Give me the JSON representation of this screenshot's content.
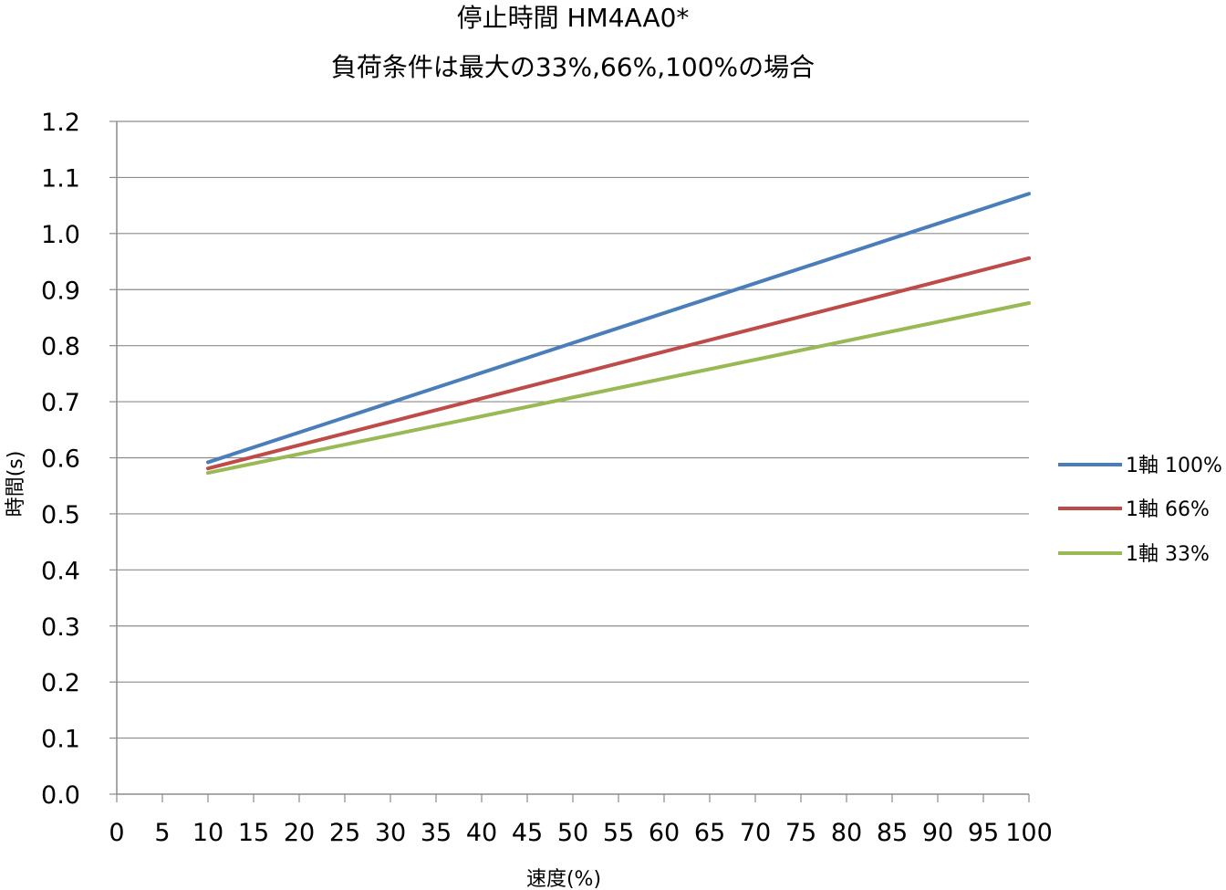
{
  "chart_data": {
    "type": "line",
    "title": "停止時間 HM4AA0*",
    "subtitle": "負荷条件は最大の33%,66%,100%の場合",
    "xlabel": "速度(%)",
    "ylabel": "時間(s)",
    "xlim": [
      0,
      100
    ],
    "ylim": [
      0,
      1.2
    ],
    "x_ticks": [
      "0",
      "5",
      "10",
      "15",
      "20",
      "25",
      "30",
      "35",
      "40",
      "45",
      "50",
      "55",
      "60",
      "65",
      "70",
      "75",
      "80",
      "85",
      "90",
      "95",
      "100"
    ],
    "y_ticks": [
      "0.0",
      "0.1",
      "0.2",
      "0.3",
      "0.4",
      "0.5",
      "0.6",
      "0.7",
      "0.8",
      "0.9",
      "1.0",
      "1.1",
      "1.2"
    ],
    "grid": "horizontal",
    "legend_position": "right",
    "series": [
      {
        "name": "1軸 100%",
        "color": "#4a7ebb",
        "x": [
          10,
          100
        ],
        "y": [
          0.592,
          1.071
        ]
      },
      {
        "name": "1軸 66%",
        "color": "#be4b48",
        "x": [
          10,
          100
        ],
        "y": [
          0.581,
          0.956
        ]
      },
      {
        "name": "1軸 33%",
        "color": "#98b954",
        "x": [
          10,
          100
        ],
        "y": [
          0.573,
          0.876
        ]
      }
    ]
  }
}
